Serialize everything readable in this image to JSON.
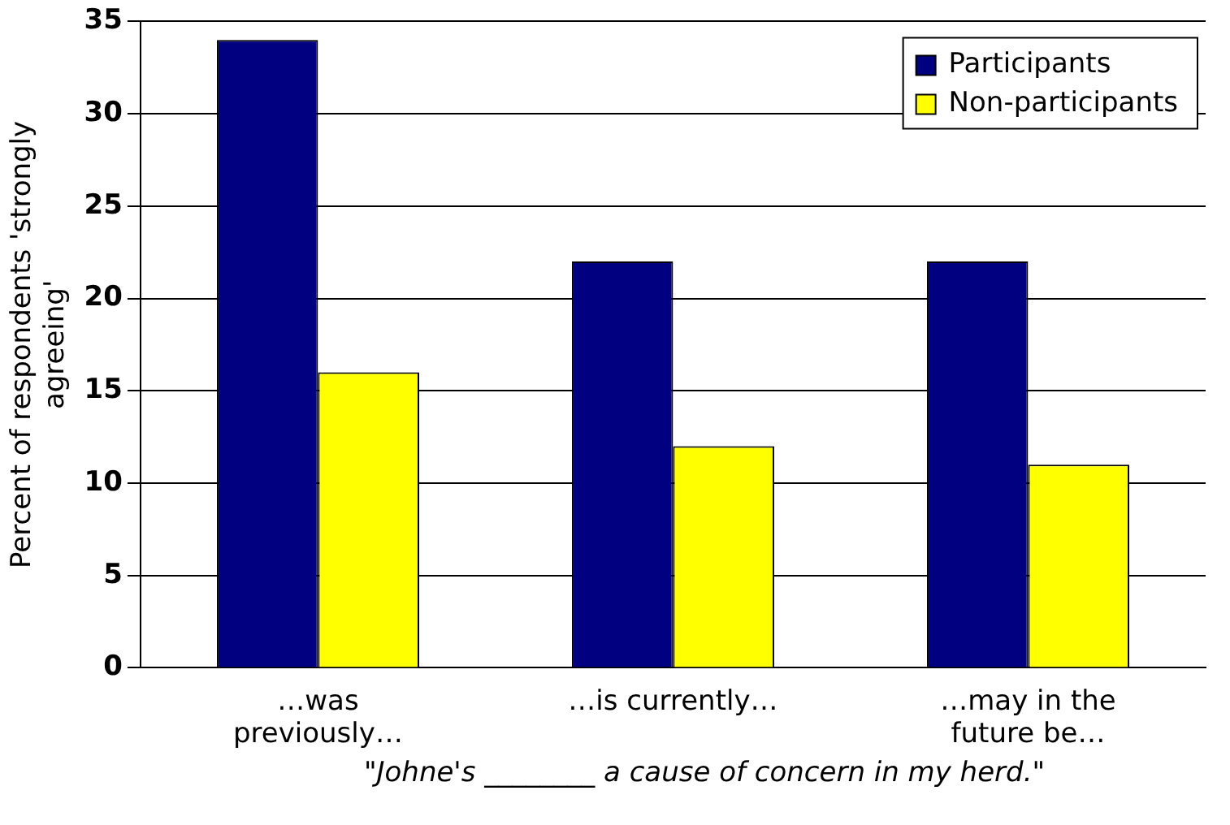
{
  "chart_data": {
    "type": "bar",
    "ylabel": "Percent of respondents 'strongly agreeing'",
    "categories": [
      "…was previously…",
      "…is currently…",
      "…may in the future be…"
    ],
    "series": [
      {
        "name": "Participants",
        "color": "#000080",
        "values": [
          34,
          22,
          22
        ]
      },
      {
        "name": "Non-participants",
        "color": "#ffff00",
        "values": [
          16,
          12,
          11
        ]
      }
    ],
    "ylim": [
      0,
      35
    ],
    "yticks": [
      0,
      5,
      10,
      15,
      20,
      25,
      30,
      35
    ],
    "grid": "y",
    "legend": "top right",
    "annotations": [
      "\"Johne's ________ a cause of concern in my herd.\""
    ]
  }
}
